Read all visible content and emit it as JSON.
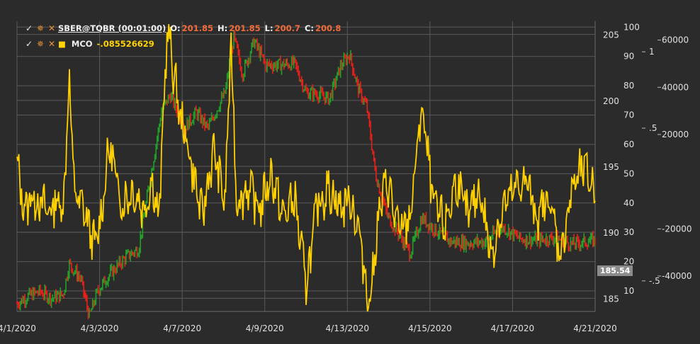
{
  "legend": {
    "main": {
      "title": "SBER@TQBR (00:01:00)",
      "o_label": "O:",
      "o": "201.85",
      "h_label": "H:",
      "h": "201.85",
      "l_label": "L:",
      "l": "200.7",
      "c_label": "C:",
      "c": "200.8"
    },
    "indicator": {
      "title": "MCO",
      "value": "-.085526629"
    }
  },
  "price_tag": "185.54",
  "chart_data": [
    {
      "type": "line",
      "name": "SBER@TQBR (00:01:00)",
      "x_ticks": [
        "4/1/2020",
        "4/3/2020",
        "4/7/2020",
        "4/9/2020",
        "4/13/2020",
        "4/15/2020",
        "4/17/2020",
        "4/21/2020"
      ],
      "y_ticks": [
        185,
        190,
        195,
        200,
        205
      ],
      "ylim": [
        184,
        206
      ],
      "color_up": "#22a02a",
      "color_down": "#e8201a",
      "x": [
        0,
        0.02,
        0.04,
        0.06,
        0.08,
        0.09,
        0.11,
        0.125,
        0.14,
        0.15,
        0.16,
        0.19,
        0.21,
        0.25,
        0.265,
        0.29,
        0.31,
        0.33,
        0.36,
        0.375,
        0.39,
        0.41,
        0.43,
        0.46,
        0.48,
        0.5,
        0.52,
        0.54,
        0.56,
        0.575,
        0.59,
        0.605,
        0.62,
        0.64,
        0.66,
        0.68,
        0.7,
        0.72,
        0.75,
        0.78,
        0.81,
        0.84,
        0.87,
        0.9,
        0.93,
        0.96,
        1.0
      ],
      "y": [
        184.6,
        185.2,
        185.5,
        185.0,
        185.3,
        187.6,
        186.5,
        183.6,
        185.6,
        186.2,
        186.8,
        188.2,
        188.7,
        199.2,
        200.4,
        197.9,
        199.1,
        197.9,
        200.6,
        204.8,
        202.0,
        204.5,
        202.7,
        202.7,
        202.8,
        200.6,
        200.5,
        200.1,
        202.6,
        203.5,
        200.9,
        199.5,
        194.4,
        191.3,
        189.9,
        188.4,
        191.1,
        190.3,
        189.3,
        189.2,
        189.3,
        190.4,
        189.5,
        189.4,
        189.6,
        189.1,
        189.4
      ]
    },
    {
      "type": "line",
      "name": "MCO",
      "y_ticks_left": [
        10,
        20,
        30,
        40,
        50,
        60,
        70,
        80,
        90,
        100
      ],
      "ylim_left": [
        3,
        102
      ],
      "y_ticks_center": [
        "1",
        ".5",
        "-.5"
      ],
      "y_ticks_right": [
        60000,
        40000,
        20000,
        -20000,
        -40000
      ],
      "ylim_right": [
        -55000,
        68000
      ],
      "color": "#ffd000",
      "x": [
        0,
        0.012,
        0.025,
        0.04,
        0.055,
        0.07,
        0.08,
        0.09,
        0.1,
        0.115,
        0.135,
        0.145,
        0.16,
        0.18,
        0.2,
        0.22,
        0.235,
        0.245,
        0.26,
        0.28,
        0.3,
        0.32,
        0.34,
        0.36,
        0.37,
        0.38,
        0.4,
        0.42,
        0.44,
        0.46,
        0.48,
        0.5,
        0.52,
        0.54,
        0.56,
        0.575,
        0.59,
        0.6,
        0.61,
        0.625,
        0.64,
        0.66,
        0.68,
        0.7,
        0.72,
        0.74,
        0.76,
        0.78,
        0.8,
        0.82,
        0.84,
        0.86,
        0.88,
        0.9,
        0.92,
        0.94,
        0.96,
        0.98,
        1.0
      ],
      "y": [
        53,
        38,
        42,
        40,
        37,
        41,
        38,
        82,
        43,
        38,
        25,
        35,
        60,
        40,
        44,
        38,
        48,
        33,
        100,
        72,
        55,
        35,
        58,
        40,
        95,
        40,
        45,
        38,
        50,
        35,
        42,
        12,
        40,
        45,
        38,
        42,
        32,
        18,
        5,
        35,
        48,
        30,
        35,
        73,
        40,
        32,
        48,
        35,
        45,
        22,
        38,
        44,
        48,
        35,
        42,
        22,
        45,
        52,
        44
      ]
    }
  ]
}
